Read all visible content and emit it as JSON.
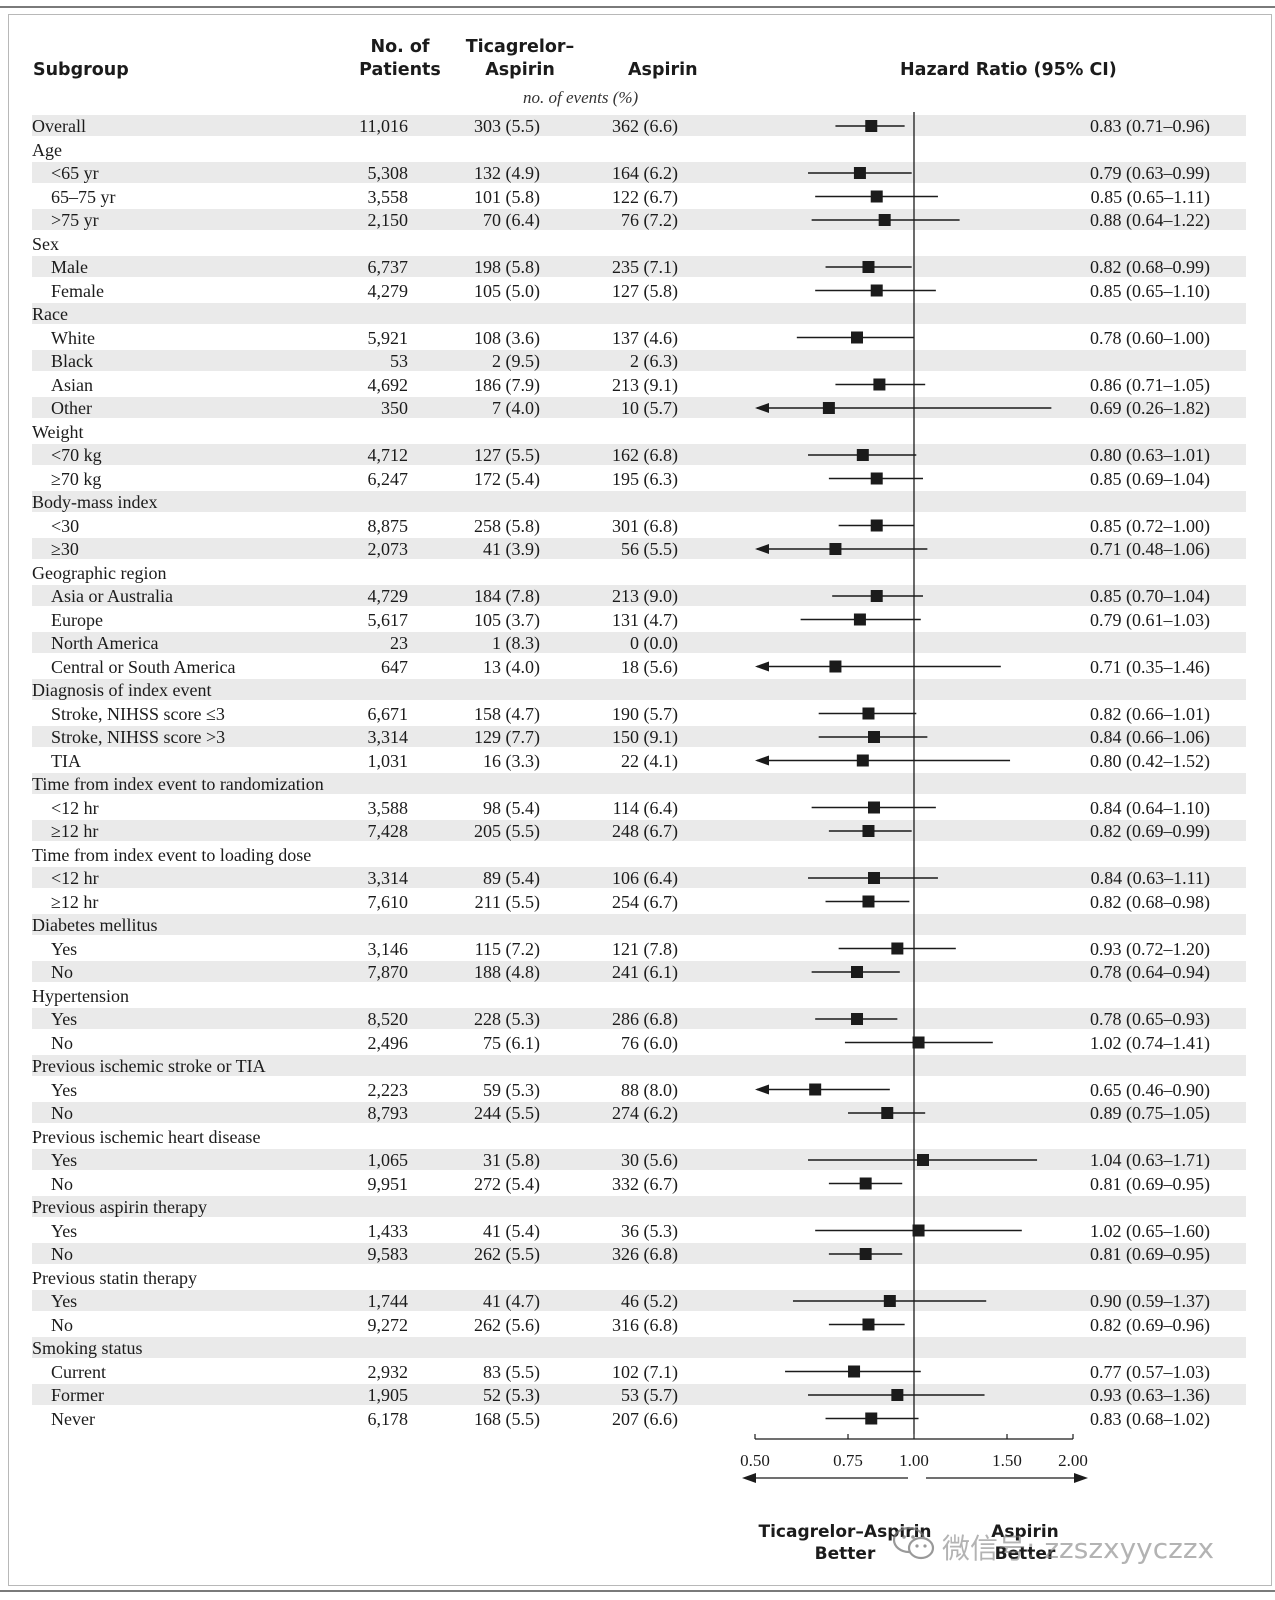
{
  "headers": {
    "subgroup": "Subgroup",
    "patients_line1": "No. of",
    "patients_line2": "Patients",
    "ticagrelor_line1": "Ticagrelor–",
    "ticagrelor_line2": "Aspirin",
    "aspirin": "Aspirin",
    "events_note": "no. of events (%)",
    "hazard_ratio": "Hazard Ratio (95% CI)"
  },
  "footer": {
    "left_line1": "Ticagrelor–Aspirin",
    "left_line2": "Better",
    "right_line1": "Aspirin",
    "right_line2": "Better"
  },
  "watermark": {
    "text": "微信号: zzszxyyczzx",
    "icon": "wechat-icon"
  },
  "colors": {
    "band": "#eaeaea",
    "marker": "#1b1b1b",
    "frame": "#b8b8b8"
  },
  "chart_data": {
    "type": "forest",
    "x_scale": "log",
    "x_ticks": [
      "0.50",
      "0.75",
      "1.00",
      "1.50",
      "2.00"
    ],
    "x_tick_values": [
      0.5,
      0.75,
      1.0,
      1.5,
      2.0
    ],
    "xlim": [
      0.5,
      2.0
    ],
    "reference_line": 1.0,
    "rows": [
      {
        "label": "Overall",
        "indent": false,
        "shaded": true,
        "n": "11,016",
        "tica": "303 (5.5)",
        "asp": "362 (6.6)",
        "hr_text": "0.83 (0.71–0.96)",
        "hr": 0.83,
        "lo": 0.71,
        "hi": 0.96
      },
      {
        "label": "Age",
        "indent": false,
        "shaded": false,
        "header": true
      },
      {
        "label": "<65 yr",
        "indent": true,
        "shaded": true,
        "n": "5,308",
        "tica": "132 (4.9)",
        "asp": "164 (6.2)",
        "hr_text": "0.79 (0.63–0.99)",
        "hr": 0.79,
        "lo": 0.63,
        "hi": 0.99
      },
      {
        "label": "65–75 yr",
        "indent": true,
        "shaded": false,
        "n": "3,558",
        "tica": "101 (5.8)",
        "asp": "122 (6.7)",
        "hr_text": "0.85 (0.65–1.11)",
        "hr": 0.85,
        "lo": 0.65,
        "hi": 1.11
      },
      {
        "label": ">75 yr",
        "indent": true,
        "shaded": true,
        "n": "2,150",
        "tica": "70 (6.4)",
        "asp": "76 (7.2)",
        "hr_text": "0.88 (0.64–1.22)",
        "hr": 0.88,
        "lo": 0.64,
        "hi": 1.22
      },
      {
        "label": "Sex",
        "indent": false,
        "shaded": false,
        "header": true
      },
      {
        "label": "Male",
        "indent": true,
        "shaded": true,
        "n": "6,737",
        "tica": "198 (5.8)",
        "asp": "235 (7.1)",
        "hr_text": "0.82 (0.68–0.99)",
        "hr": 0.82,
        "lo": 0.68,
        "hi": 0.99
      },
      {
        "label": "Female",
        "indent": true,
        "shaded": false,
        "n": "4,279",
        "tica": "105 (5.0)",
        "asp": "127 (5.8)",
        "hr_text": "0.85 (0.65–1.10)",
        "hr": 0.85,
        "lo": 0.65,
        "hi": 1.1
      },
      {
        "label": "Race",
        "indent": false,
        "shaded": true,
        "header": true
      },
      {
        "label": "White",
        "indent": true,
        "shaded": false,
        "n": "5,921",
        "tica": "108 (3.6)",
        "asp": "137 (4.6)",
        "hr_text": "0.78 (0.60–1.00)",
        "hr": 0.78,
        "lo": 0.6,
        "hi": 1.0
      },
      {
        "label": "Black",
        "indent": true,
        "shaded": true,
        "n": "53",
        "tica": "2 (9.5)",
        "asp": "2 (6.3)",
        "hr_text": "",
        "hr": null,
        "lo": null,
        "hi": null
      },
      {
        "label": "Asian",
        "indent": true,
        "shaded": false,
        "n": "4,692",
        "tica": "186 (7.9)",
        "asp": "213 (9.1)",
        "hr_text": "0.86 (0.71–1.05)",
        "hr": 0.86,
        "lo": 0.71,
        "hi": 1.05
      },
      {
        "label": "Other",
        "indent": true,
        "shaded": true,
        "n": "350",
        "tica": "7 (4.0)",
        "asp": "10 (5.7)",
        "hr_text": "0.69 (0.26–1.82)",
        "hr": 0.69,
        "lo": 0.26,
        "hi": 1.82
      },
      {
        "label": "Weight",
        "indent": false,
        "shaded": false,
        "header": true
      },
      {
        "label": "<70 kg",
        "indent": true,
        "shaded": true,
        "n": "4,712",
        "tica": "127 (5.5)",
        "asp": "162 (6.8)",
        "hr_text": "0.80 (0.63–1.01)",
        "hr": 0.8,
        "lo": 0.63,
        "hi": 1.01
      },
      {
        "label": "≥70 kg",
        "indent": true,
        "shaded": false,
        "n": "6,247",
        "tica": "172 (5.4)",
        "asp": "195 (6.3)",
        "hr_text": "0.85 (0.69–1.04)",
        "hr": 0.85,
        "lo": 0.69,
        "hi": 1.04
      },
      {
        "label": "Body-mass index",
        "indent": false,
        "shaded": true,
        "header": true
      },
      {
        "label": "<30",
        "indent": true,
        "shaded": false,
        "n": "8,875",
        "tica": "258 (5.8)",
        "asp": "301 (6.8)",
        "hr_text": "0.85 (0.72–1.00)",
        "hr": 0.85,
        "lo": 0.72,
        "hi": 1.0
      },
      {
        "label": "≥30",
        "indent": true,
        "shaded": true,
        "n": "2,073",
        "tica": "41 (3.9)",
        "asp": "56 (5.5)",
        "hr_text": "0.71 (0.48–1.06)",
        "hr": 0.71,
        "lo": 0.48,
        "hi": 1.06
      },
      {
        "label": "Geographic region",
        "indent": false,
        "shaded": false,
        "header": true
      },
      {
        "label": "Asia or Australia",
        "indent": true,
        "shaded": true,
        "n": "4,729",
        "tica": "184 (7.8)",
        "asp": "213 (9.0)",
        "hr_text": "0.85 (0.70–1.04)",
        "hr": 0.85,
        "lo": 0.7,
        "hi": 1.04
      },
      {
        "label": "Europe",
        "indent": true,
        "shaded": false,
        "n": "5,617",
        "tica": "105 (3.7)",
        "asp": "131 (4.7)",
        "hr_text": "0.79 (0.61–1.03)",
        "hr": 0.79,
        "lo": 0.61,
        "hi": 1.03
      },
      {
        "label": "North America",
        "indent": true,
        "shaded": true,
        "n": "23",
        "tica": "1 (8.3)",
        "asp": "0 (0.0)",
        "hr_text": "",
        "hr": null,
        "lo": null,
        "hi": null
      },
      {
        "label": "Central or South America",
        "indent": true,
        "shaded": false,
        "n": "647",
        "tica": "13 (4.0)",
        "asp": "18 (5.6)",
        "hr_text": "0.71 (0.35–1.46)",
        "hr": 0.71,
        "lo": 0.35,
        "hi": 1.46
      },
      {
        "label": "Diagnosis of index event",
        "indent": false,
        "shaded": true,
        "header": true
      },
      {
        "label": "Stroke, NIHSS score ≤3",
        "indent": true,
        "shaded": false,
        "n": "6,671",
        "tica": "158 (4.7)",
        "asp": "190 (5.7)",
        "hr_text": "0.82 (0.66–1.01)",
        "hr": 0.82,
        "lo": 0.66,
        "hi": 1.01
      },
      {
        "label": "Stroke, NIHSS score >3",
        "indent": true,
        "shaded": true,
        "n": "3,314",
        "tica": "129 (7.7)",
        "asp": "150 (9.1)",
        "hr_text": "0.84 (0.66–1.06)",
        "hr": 0.84,
        "lo": 0.66,
        "hi": 1.06
      },
      {
        "label": "TIA",
        "indent": true,
        "shaded": false,
        "n": "1,031",
        "tica": "16 (3.3)",
        "asp": "22 (4.1)",
        "hr_text": "0.80 (0.42–1.52)",
        "hr": 0.8,
        "lo": 0.42,
        "hi": 1.52
      },
      {
        "label": "Time from index event to randomization",
        "indent": false,
        "shaded": true,
        "header": true
      },
      {
        "label": "<12 hr",
        "indent": true,
        "shaded": false,
        "n": "3,588",
        "tica": "98 (5.4)",
        "asp": "114 (6.4)",
        "hr_text": "0.84 (0.64–1.10)",
        "hr": 0.84,
        "lo": 0.64,
        "hi": 1.1
      },
      {
        "label": "≥12 hr",
        "indent": true,
        "shaded": true,
        "n": "7,428",
        "tica": "205 (5.5)",
        "asp": "248 (6.7)",
        "hr_text": "0.82 (0.69–0.99)",
        "hr": 0.82,
        "lo": 0.69,
        "hi": 0.99
      },
      {
        "label": "Time from index event to loading dose",
        "indent": false,
        "shaded": false,
        "header": true
      },
      {
        "label": "<12 hr",
        "indent": true,
        "shaded": true,
        "n": "3,314",
        "tica": "89 (5.4)",
        "asp": "106 (6.4)",
        "hr_text": "0.84 (0.63–1.11)",
        "hr": 0.84,
        "lo": 0.63,
        "hi": 1.11
      },
      {
        "label": "≥12 hr",
        "indent": true,
        "shaded": false,
        "n": "7,610",
        "tica": "211 (5.5)",
        "asp": "254 (6.7)",
        "hr_text": "0.82 (0.68–0.98)",
        "hr": 0.82,
        "lo": 0.68,
        "hi": 0.98
      },
      {
        "label": "Diabetes mellitus",
        "indent": false,
        "shaded": true,
        "header": true
      },
      {
        "label": "Yes",
        "indent": true,
        "shaded": false,
        "n": "3,146",
        "tica": "115 (7.2)",
        "asp": "121 (7.8)",
        "hr_text": "0.93 (0.72–1.20)",
        "hr": 0.93,
        "lo": 0.72,
        "hi": 1.2
      },
      {
        "label": "No",
        "indent": true,
        "shaded": true,
        "n": "7,870",
        "tica": "188 (4.8)",
        "asp": "241 (6.1)",
        "hr_text": "0.78 (0.64–0.94)",
        "hr": 0.78,
        "lo": 0.64,
        "hi": 0.94
      },
      {
        "label": "Hypertension",
        "indent": false,
        "shaded": false,
        "header": true
      },
      {
        "label": "Yes",
        "indent": true,
        "shaded": true,
        "n": "8,520",
        "tica": "228 (5.3)",
        "asp": "286 (6.8)",
        "hr_text": "0.78 (0.65–0.93)",
        "hr": 0.78,
        "lo": 0.65,
        "hi": 0.93
      },
      {
        "label": "No",
        "indent": true,
        "shaded": false,
        "n": "2,496",
        "tica": "75 (6.1)",
        "asp": "76 (6.0)",
        "hr_text": "1.02 (0.74–1.41)",
        "hr": 1.02,
        "lo": 0.74,
        "hi": 1.41
      },
      {
        "label": "Previous ischemic stroke or TIA",
        "indent": false,
        "shaded": true,
        "header": true
      },
      {
        "label": "Yes",
        "indent": true,
        "shaded": false,
        "n": "2,223",
        "tica": "59 (5.3)",
        "asp": "88 (8.0)",
        "hr_text": "0.65 (0.46–0.90)",
        "hr": 0.65,
        "lo": 0.46,
        "hi": 0.9
      },
      {
        "label": "No",
        "indent": true,
        "shaded": true,
        "n": "8,793",
        "tica": "244 (5.5)",
        "asp": "274 (6.2)",
        "hr_text": "0.89 (0.75–1.05)",
        "hr": 0.89,
        "lo": 0.75,
        "hi": 1.05
      },
      {
        "label": "Previous ischemic heart disease",
        "indent": false,
        "shaded": false,
        "header": true
      },
      {
        "label": "Yes",
        "indent": true,
        "shaded": true,
        "n": "1,065",
        "tica": "31 (5.8)",
        "asp": "30 (5.6)",
        "hr_text": "1.04 (0.63–1.71)",
        "hr": 1.04,
        "lo": 0.63,
        "hi": 1.71
      },
      {
        "label": "No",
        "indent": true,
        "shaded": false,
        "n": "9,951",
        "tica": "272 (5.4)",
        "asp": "332 (6.7)",
        "hr_text": "0.81 (0.69–0.95)",
        "hr": 0.81,
        "lo": 0.69,
        "hi": 0.95
      },
      {
        "label": "Previous aspirin therapy",
        "indent": false,
        "shaded": true,
        "header": true
      },
      {
        "label": "Yes",
        "indent": true,
        "shaded": false,
        "n": "1,433",
        "tica": "41 (5.4)",
        "asp": "36 (5.3)",
        "hr_text": "1.02 (0.65–1.60)",
        "hr": 1.02,
        "lo": 0.65,
        "hi": 1.6
      },
      {
        "label": "No",
        "indent": true,
        "shaded": true,
        "n": "9,583",
        "tica": "262 (5.5)",
        "asp": "326 (6.8)",
        "hr_text": "0.81 (0.69–0.95)",
        "hr": 0.81,
        "lo": 0.69,
        "hi": 0.95
      },
      {
        "label": "Previous statin therapy",
        "indent": false,
        "shaded": false,
        "header": true
      },
      {
        "label": "Yes",
        "indent": true,
        "shaded": true,
        "n": "1,744",
        "tica": "41 (4.7)",
        "asp": "46 (5.2)",
        "hr_text": "0.90 (0.59–1.37)",
        "hr": 0.9,
        "lo": 0.59,
        "hi": 1.37
      },
      {
        "label": "No",
        "indent": true,
        "shaded": false,
        "n": "9,272",
        "tica": "262 (5.6)",
        "asp": "316 (6.8)",
        "hr_text": "0.82 (0.69–0.96)",
        "hr": 0.82,
        "lo": 0.69,
        "hi": 0.96
      },
      {
        "label": "Smoking status",
        "indent": false,
        "shaded": true,
        "header": true
      },
      {
        "label": "Current",
        "indent": true,
        "shaded": false,
        "n": "2,932",
        "tica": "83 (5.5)",
        "asp": "102 (7.1)",
        "hr_text": "0.77 (0.57–1.03)",
        "hr": 0.77,
        "lo": 0.57,
        "hi": 1.03
      },
      {
        "label": "Former",
        "indent": true,
        "shaded": true,
        "n": "1,905",
        "tica": "52 (5.3)",
        "asp": "53 (5.7)",
        "hr_text": "0.93 (0.63–1.36)",
        "hr": 0.93,
        "lo": 0.63,
        "hi": 1.36
      },
      {
        "label": "Never",
        "indent": true,
        "shaded": false,
        "n": "6,178",
        "tica": "168 (5.5)",
        "asp": "207 (6.6)",
        "hr_text": "0.83 (0.68–1.02)",
        "hr": 0.83,
        "lo": 0.68,
        "hi": 1.02
      }
    ]
  }
}
